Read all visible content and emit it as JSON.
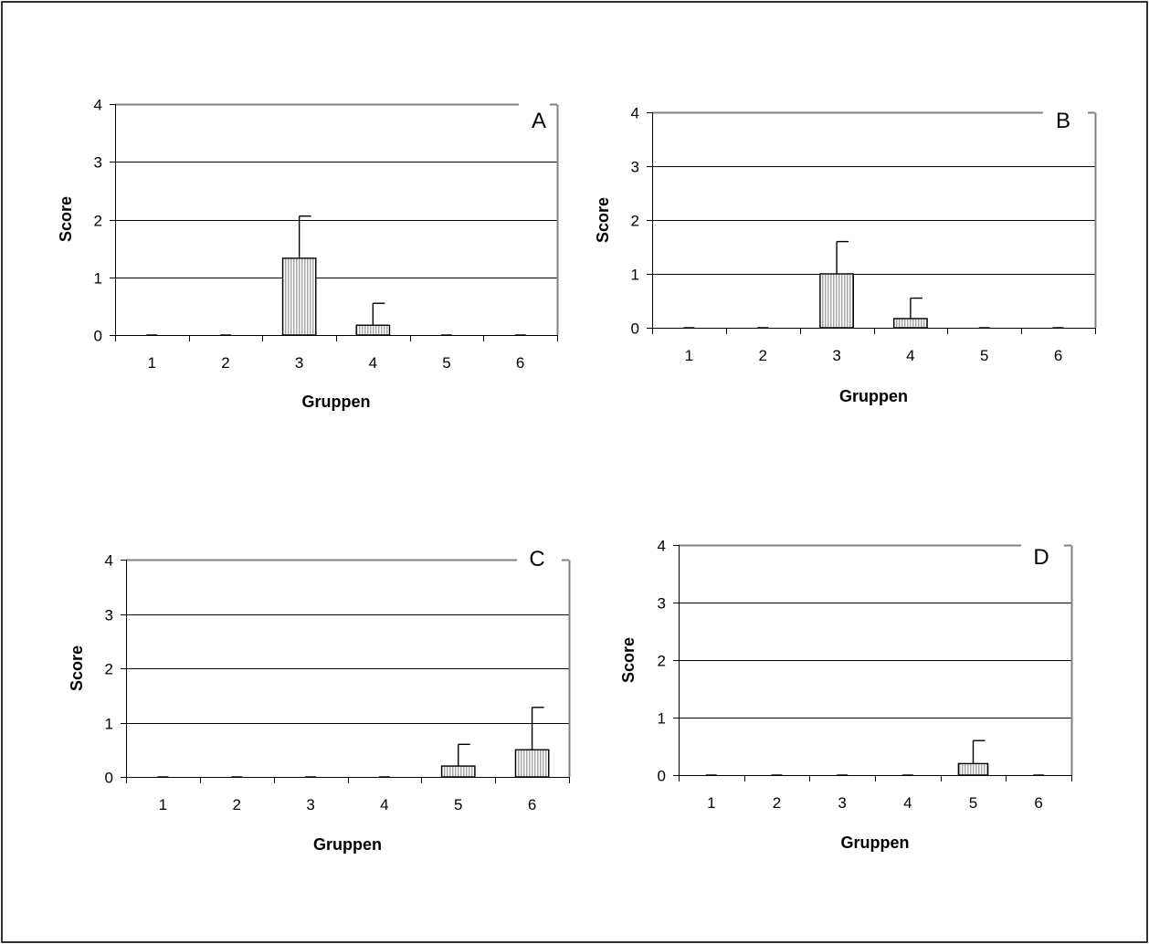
{
  "chart_data": [
    {
      "type": "bar",
      "panel_label": "A",
      "categories": [
        "1",
        "2",
        "3",
        "4",
        "5",
        "6"
      ],
      "values": [
        0,
        0,
        1.33,
        0.17,
        0,
        0
      ],
      "error_plus": [
        0,
        0,
        0.73,
        0.38,
        0,
        0
      ],
      "xlabel": "Gruppen",
      "ylabel": "Score",
      "ylim": [
        0,
        4
      ],
      "yticks": [
        "0",
        "1",
        "2",
        "3",
        "4"
      ],
      "grid": true,
      "bar_color": "#d9d9d9"
    },
    {
      "type": "bar",
      "panel_label": "B",
      "categories": [
        "1",
        "2",
        "3",
        "4",
        "5",
        "6"
      ],
      "values": [
        0,
        0,
        1.0,
        0.17,
        0,
        0
      ],
      "error_plus": [
        0,
        0,
        0.6,
        0.38,
        0,
        0
      ],
      "xlabel": "Gruppen",
      "ylabel": "Score",
      "ylim": [
        0,
        4
      ],
      "yticks": [
        "0",
        "1",
        "2",
        "3",
        "4"
      ],
      "grid": true,
      "bar_color": "#d9d9d9"
    },
    {
      "type": "bar",
      "panel_label": "C",
      "categories": [
        "1",
        "2",
        "3",
        "4",
        "5",
        "6"
      ],
      "values": [
        0,
        0,
        0,
        0,
        0.2,
        0.5
      ],
      "error_plus": [
        0,
        0,
        0,
        0,
        0.4,
        0.78
      ],
      "xlabel": "Gruppen",
      "ylabel": "Score",
      "ylim": [
        0,
        4
      ],
      "yticks": [
        "0",
        "1",
        "2",
        "3",
        "4"
      ],
      "grid": true,
      "bar_color": "#d9d9d9"
    },
    {
      "type": "bar",
      "panel_label": "D",
      "categories": [
        "1",
        "2",
        "3",
        "4",
        "5",
        "6"
      ],
      "values": [
        0,
        0,
        0,
        0,
        0.2,
        0
      ],
      "error_plus": [
        0,
        0,
        0,
        0,
        0.4,
        0
      ],
      "xlabel": "Gruppen",
      "ylabel": "Score",
      "ylim": [
        0,
        4
      ],
      "yticks": [
        "0",
        "1",
        "2",
        "3",
        "4"
      ],
      "grid": true,
      "bar_color": "#d9d9d9"
    }
  ]
}
